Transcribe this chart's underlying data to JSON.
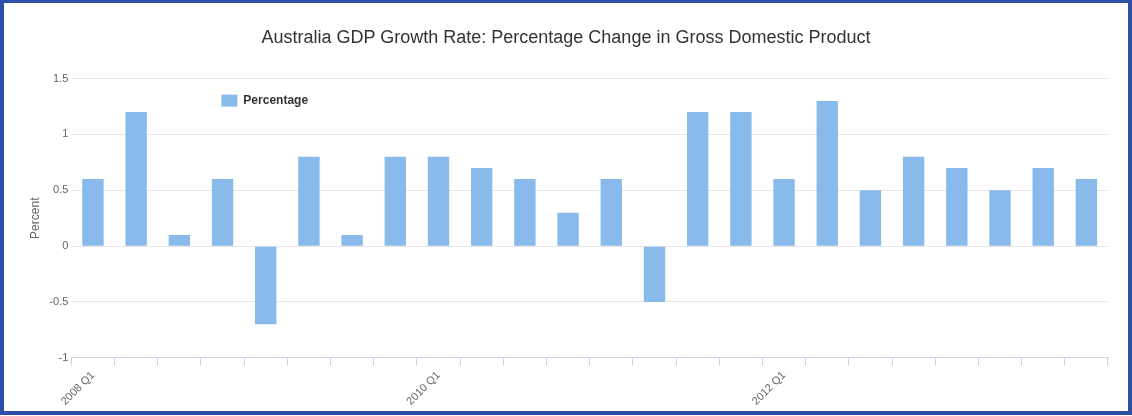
{
  "chart_data": {
    "type": "bar",
    "title": "Australia GDP Growth Rate: Percentage Change in Gross Domestic Product",
    "ylabel": "Percent",
    "categories": [
      "2008 Q1",
      null,
      null,
      null,
      null,
      null,
      null,
      null,
      "2010 Q1",
      null,
      null,
      null,
      null,
      null,
      null,
      null,
      "2012 Q1",
      null,
      null,
      null,
      null,
      null,
      null,
      null
    ],
    "series": [
      {
        "name": "Percentage",
        "color": "#88bbec",
        "values": [
          0.6,
          1.2,
          0.1,
          0.6,
          -0.7,
          0.8,
          0.1,
          0.8,
          0.8,
          0.7,
          0.6,
          0.3,
          0.6,
          -0.5,
          1.2,
          1.2,
          0.6,
          1.3,
          0.5,
          0.8,
          0.7,
          0.5,
          0.7,
          0.6
        ]
      }
    ],
    "ylim": [
      -1,
      1.5
    ],
    "yticks": [
      -1,
      -0.5,
      0,
      0.5,
      1,
      1.5
    ],
    "grid": "y",
    "legend": "top left"
  }
}
